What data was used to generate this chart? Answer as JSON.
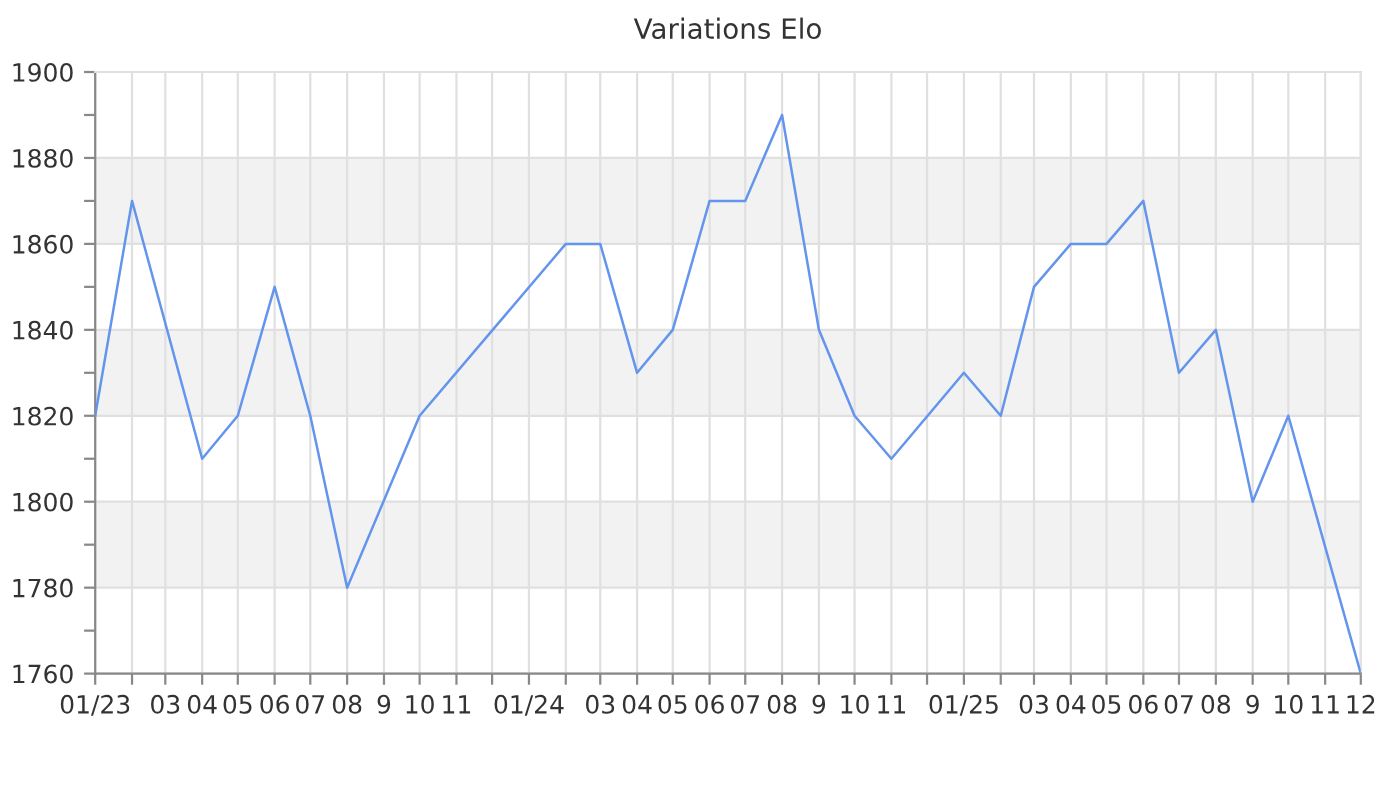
{
  "chart_data": {
    "type": "line",
    "title": "Variations Elo",
    "x": [
      "2023-01",
      "2023-02",
      "2023-04",
      "2023-05",
      "2023-06",
      "2023-07",
      "2023-08",
      "2023-10",
      "2024-02",
      "2024-03",
      "2024-04",
      "2024-05",
      "2024-06",
      "2024-07",
      "2024-08",
      "2024-09",
      "2024-10",
      "2024-11",
      "2025-01",
      "2025-02",
      "2025-03",
      "2025-04",
      "2025-05",
      "2025-06",
      "2025-07",
      "2025-08",
      "2025-09",
      "2025-10",
      "2025-12"
    ],
    "series": [
      {
        "color": "#6495ed",
        "values": [
          1820,
          1870,
          1810,
          1820,
          1850,
          1820,
          1780,
          1820,
          1860,
          1860,
          1830,
          1840,
          1870,
          1870,
          1890,
          1840,
          1820,
          1810,
          1830,
          1820,
          1850,
          1860,
          1860,
          1870,
          1830,
          1840,
          1800,
          1820,
          1760
        ]
      }
    ],
    "xlim": [
      "2023-01",
      "2025-12"
    ],
    "xticks": [
      {
        "value": "2023-01",
        "label": "01/23"
      },
      {
        "value": "2023-02",
        "label": null
      },
      {
        "value": "2023-03",
        "label": "03"
      },
      {
        "value": "2023-04",
        "label": "04"
      },
      {
        "value": "2023-05",
        "label": "05"
      },
      {
        "value": "2023-06",
        "label": "06"
      },
      {
        "value": "2023-07",
        "label": "07"
      },
      {
        "value": "2023-08",
        "label": "08"
      },
      {
        "value": "2023-09",
        "label": "9"
      },
      {
        "value": "2023-10",
        "label": "10"
      },
      {
        "value": "2023-11",
        "label": "11"
      },
      {
        "value": "2023-12",
        "label": null
      },
      {
        "value": "2024-01",
        "label": "01/24"
      },
      {
        "value": "2024-02",
        "label": null
      },
      {
        "value": "2024-03",
        "label": "03"
      },
      {
        "value": "2024-04",
        "label": "04"
      },
      {
        "value": "2024-05",
        "label": "05"
      },
      {
        "value": "2024-06",
        "label": "06"
      },
      {
        "value": "2024-07",
        "label": "07"
      },
      {
        "value": "2024-08",
        "label": "08"
      },
      {
        "value": "2024-09",
        "label": "9"
      },
      {
        "value": "2024-10",
        "label": "10"
      },
      {
        "value": "2024-11",
        "label": "11"
      },
      {
        "value": "2024-12",
        "label": null
      },
      {
        "value": "2025-01",
        "label": "01/25"
      },
      {
        "value": "2025-02",
        "label": null
      },
      {
        "value": "2025-03",
        "label": "03"
      },
      {
        "value": "2025-04",
        "label": "04"
      },
      {
        "value": "2025-05",
        "label": "05"
      },
      {
        "value": "2025-06",
        "label": "06"
      },
      {
        "value": "2025-07",
        "label": "07"
      },
      {
        "value": "2025-08",
        "label": "08"
      },
      {
        "value": "2025-09",
        "label": "9"
      },
      {
        "value": "2025-10",
        "label": "10"
      },
      {
        "value": "2025-11",
        "label": "11"
      },
      {
        "value": "2025-12",
        "label": "12"
      }
    ],
    "ylim": [
      1760,
      1900
    ],
    "yticks": [
      1760,
      {
        "value": 1770,
        "label": null
      },
      1780,
      {
        "value": 1790,
        "label": null
      },
      1800,
      {
        "value": 1810,
        "label": null
      },
      1820,
      {
        "value": 1830,
        "label": null
      },
      1840,
      {
        "value": 1850,
        "label": null
      },
      1860,
      {
        "value": 1870,
        "label": null
      },
      1880,
      {
        "value": 1890,
        "label": null
      },
      1900
    ],
    "bands": [
      {
        "axis": "y",
        "from": 1780,
        "to": 1800,
        "color": "#f2f2f2"
      },
      {
        "axis": "y",
        "from": 1820,
        "to": 1840,
        "color": "#f2f2f2"
      },
      {
        "axis": "y",
        "from": 1860,
        "to": 1880,
        "color": "#f2f2f2"
      }
    ],
    "grid": true,
    "marker": "none",
    "line_style": "solid",
    "legend": false
  }
}
